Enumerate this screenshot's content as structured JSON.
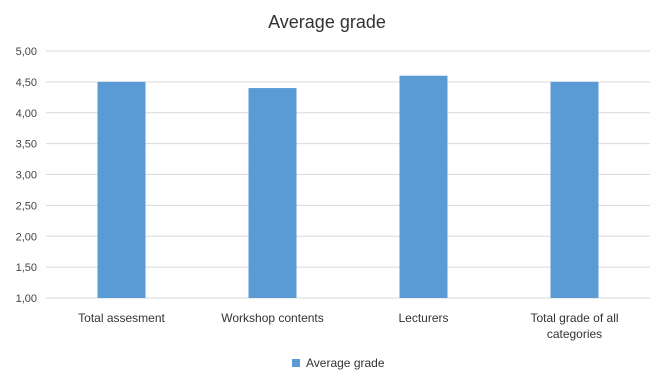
{
  "chart_data": {
    "type": "bar",
    "title": "Average grade",
    "categories": [
      "Total assesment",
      "Workshop contents",
      "Lecturers",
      "Total grade of all categories"
    ],
    "series": [
      {
        "name": "Average grade",
        "values": [
          4.5,
          4.4,
          4.6,
          4.5
        ]
      }
    ],
    "xlabel": "",
    "ylabel": "",
    "ylim": [
      1.0,
      5.0
    ],
    "yticks": [
      "1,00",
      "1,50",
      "2,00",
      "2,50",
      "3,00",
      "3,50",
      "4,00",
      "4,50",
      "5,00"
    ],
    "grid": true,
    "legend_position": "bottom",
    "bar_color": "#5b9bd5",
    "grid_color": "#d9d9d9",
    "text_color": "#333333"
  }
}
